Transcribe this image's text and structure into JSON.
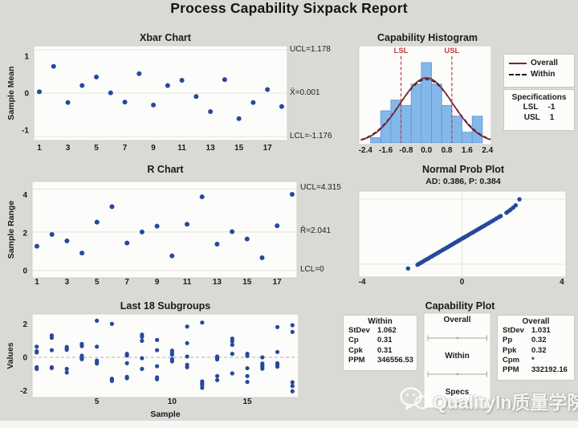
{
  "report": {
    "title": "Process Capability Sixpack Report"
  },
  "panels": {
    "xbar": {
      "title": "Xbar Chart",
      "ylabel": "Sample Mean",
      "ucl_label": "UCL=1.178",
      "center_label": "X̄=0.001",
      "lcl_label": "LCL=-1.176"
    },
    "hist": {
      "title": "Capability Histogram",
      "lsl_label": "LSL",
      "usl_label": "USL",
      "legend": {
        "overall": "Overall",
        "within": "Within"
      },
      "specs": {
        "header": "Specifications",
        "lsl_name": "LSL",
        "lsl_value": "-1",
        "usl_name": "USL",
        "usl_value": "1"
      }
    },
    "rchart": {
      "title": "R Chart",
      "ylabel": "Sample Range",
      "ucl_label": "UCL=4.315",
      "center_label": "R̄=2.041",
      "lcl_label": "LCL=0"
    },
    "nprob": {
      "title": "Normal Prob Plot",
      "subtitle": "AD: 0.386, P: 0.384"
    },
    "subgroups": {
      "title": "Last 18 Subgroups",
      "ylabel": "Values",
      "xlabel": "Sample"
    },
    "capplot": {
      "title": "Capability Plot",
      "within_box": {
        "header": "Within",
        "rows": [
          [
            "StDev",
            "1.062"
          ],
          [
            "Cp",
            "0.31"
          ],
          [
            "Cpk",
            "0.31"
          ],
          [
            "PPM",
            "346556.53"
          ]
        ]
      },
      "overall_box": {
        "header": "Overall",
        "rows": [
          [
            "StDev",
            "1.031"
          ],
          [
            "Pp",
            "0.32"
          ],
          [
            "Ppk",
            "0.32"
          ],
          [
            "Cpm",
            "*"
          ],
          [
            "PPM",
            "332192.16"
          ]
        ]
      },
      "interval_labels": [
        "Overall",
        "Within",
        "Specs"
      ]
    }
  },
  "watermark": {
    "text": "QualityIn质量学院",
    "icon": "wechat-icon"
  },
  "colors": {
    "page_bg": "#d9d9d6",
    "panel_bg": "#fcfcfa",
    "panel_border": "#d2d0cc",
    "point": "#27499d",
    "bar_fill": "#85b8ea",
    "bar_edge": "#5b97d6",
    "overall_curve": "#7a2433",
    "within_curve": "#1a1a1a",
    "spec": "#c03d45",
    "limit_line": "#e8e6e2",
    "grid": "#e5e3df",
    "interval_line": "#a6a6a2",
    "text": "#1b1b1b",
    "dash_center": "#b0b0ac",
    "bottom_strip": "#f6f6f4"
  },
  "chart_data": [
    {
      "id": "xbar",
      "type": "scatter",
      "title": "Xbar Chart",
      "ylabel": "Sample Mean",
      "ucl": 1.178,
      "center": 0.001,
      "lcl": -1.176,
      "yticks": [
        1,
        0,
        -1
      ],
      "xticks": [
        1,
        3,
        5,
        7,
        9,
        11,
        13,
        15,
        17
      ],
      "x": [
        1,
        2,
        3,
        4,
        5,
        6,
        7,
        8,
        9,
        10,
        11,
        12,
        13,
        14,
        15,
        16,
        17,
        18
      ],
      "values": [
        0.04,
        0.73,
        -0.25,
        0.21,
        0.44,
        0.01,
        -0.24,
        0.53,
        -0.32,
        0.21,
        0.35,
        -0.09,
        -0.5,
        0.37,
        -0.69,
        -0.25,
        0.1,
        -0.36
      ]
    },
    {
      "id": "hist",
      "type": "bar",
      "title": "Capability Histogram",
      "bin_width": 0.4,
      "bin_centers": [
        -2.0,
        -1.6,
        -1.2,
        -0.8,
        -0.4,
        0.0,
        0.4,
        0.8,
        1.2,
        1.6,
        2.0
      ],
      "counts": [
        1,
        6,
        8,
        7,
        11,
        15,
        11,
        7,
        5,
        2,
        5
      ],
      "xticks": [
        "-2.4",
        "-1.6",
        "-0.8",
        "0.0",
        "0.8",
        "1.6",
        "2.4"
      ],
      "xtick_values": [
        -2.4,
        -1.6,
        -0.8,
        0.0,
        0.8,
        1.6,
        2.4
      ],
      "lsl": -1,
      "usl": 1,
      "curve_overall": {
        "mean": 0.001,
        "sd": 1.031
      },
      "curve_within": {
        "mean": 0.001,
        "sd": 1.062
      }
    },
    {
      "id": "rchart",
      "type": "scatter",
      "title": "R Chart",
      "ylabel": "Sample Range",
      "ucl": 4.315,
      "center": 2.041,
      "lcl": 0,
      "yticks": [
        4,
        2,
        0
      ],
      "xticks": [
        1,
        3,
        5,
        7,
        9,
        11,
        13,
        15,
        17
      ],
      "x": [
        1,
        2,
        3,
        4,
        5,
        6,
        7,
        8,
        9,
        10,
        11,
        12,
        13,
        14,
        15,
        16,
        17,
        18
      ],
      "values": [
        1.29,
        1.91,
        1.57,
        0.93,
        2.56,
        3.38,
        1.46,
        2.04,
        2.35,
        0.78,
        2.45,
        3.9,
        1.4,
        2.06,
        1.67,
        0.68,
        2.37,
        4.03
      ]
    },
    {
      "id": "nprob",
      "type": "scatter",
      "title": "Normal Prob Plot",
      "subtitle": "AD: 0.386, P: 0.384",
      "xticks": [
        -4,
        0,
        4
      ],
      "xlim": [
        -4.15,
        4.15
      ],
      "points": [
        [
          -2.16,
          0.1
        ],
        [
          -1.78,
          0.143
        ],
        [
          -1.72,
          0.154
        ],
        [
          -1.66,
          0.164
        ],
        [
          -1.6,
          0.174
        ],
        [
          -1.52,
          0.188
        ],
        [
          -1.45,
          0.2
        ],
        [
          -1.38,
          0.211
        ],
        [
          -1.3,
          0.225
        ],
        [
          -1.22,
          0.239
        ],
        [
          -1.15,
          0.251
        ],
        [
          -1.08,
          0.262
        ],
        [
          -1.0,
          0.276
        ],
        [
          -0.93,
          0.288
        ],
        [
          -0.86,
          0.3
        ],
        [
          -0.78,
          0.313
        ],
        [
          -0.71,
          0.325
        ],
        [
          -0.64,
          0.337
        ],
        [
          -0.57,
          0.349
        ],
        [
          -0.5,
          0.361
        ],
        [
          -0.44,
          0.371
        ],
        [
          -0.38,
          0.381
        ],
        [
          -0.32,
          0.392
        ],
        [
          -0.26,
          0.402
        ],
        [
          -0.2,
          0.412
        ],
        [
          -0.15,
          0.421
        ],
        [
          -0.1,
          0.429
        ],
        [
          -0.05,
          0.438
        ],
        [
          0.0,
          0.446
        ],
        [
          0.05,
          0.455
        ],
        [
          0.1,
          0.463
        ],
        [
          0.16,
          0.473
        ],
        [
          0.22,
          0.483
        ],
        [
          0.28,
          0.494
        ],
        [
          0.35,
          0.506
        ],
        [
          0.42,
          0.517
        ],
        [
          0.49,
          0.529
        ],
        [
          0.56,
          0.541
        ],
        [
          0.63,
          0.553
        ],
        [
          0.7,
          0.565
        ],
        [
          0.78,
          0.579
        ],
        [
          0.86,
          0.592
        ],
        [
          0.94,
          0.606
        ],
        [
          1.02,
          0.619
        ],
        [
          1.1,
          0.633
        ],
        [
          1.19,
          0.648
        ],
        [
          1.28,
          0.664
        ],
        [
          1.38,
          0.681
        ],
        [
          1.48,
          0.698
        ],
        [
          1.55,
          0.71
        ],
        [
          1.78,
          0.748
        ],
        [
          1.86,
          0.765
        ],
        [
          1.95,
          0.785
        ],
        [
          2.05,
          0.808
        ],
        [
          2.15,
          0.835
        ],
        [
          2.3,
          0.905
        ]
      ]
    },
    {
      "id": "subgroups",
      "type": "scatter",
      "title": "Last 18 Subgroups",
      "ylabel": "Values",
      "xlabel": "Sample",
      "yticks": [
        2,
        0,
        -2
      ],
      "xticks": [
        5,
        10,
        15
      ],
      "centerline": 0,
      "groups": [
        [
          0.64,
          0.37,
          0.29,
          -0.59,
          -0.69
        ],
        [
          1.31,
          1.17,
          0.43,
          -0.59,
          -0.64
        ],
        [
          0.62,
          0.51,
          0.45,
          -0.69,
          -0.91
        ],
        [
          0.8,
          0.67,
          0.1,
          -0.02,
          -0.11
        ],
        [
          2.19,
          0.64,
          -0.19,
          -0.29,
          -0.37
        ],
        [
          2.0,
          -1.28,
          -1.31,
          -1.38,
          -1.41
        ],
        [
          0.21,
          0.11,
          -0.35,
          -1.17,
          -1.25
        ],
        [
          1.36,
          1.23,
          0.99,
          -0.05,
          -0.69
        ],
        [
          1.04,
          0.43,
          -0.53,
          -1.2,
          -1.31
        ],
        [
          0.4,
          0.27,
          0.16,
          -0.11,
          -0.24
        ],
        [
          1.84,
          0.85,
          0.05,
          -0.45,
          -0.59
        ],
        [
          2.08,
          -1.44,
          -1.55,
          -1.65,
          -1.82
        ],
        [
          0.05,
          -0.05,
          -0.13,
          -1.12,
          -1.36
        ],
        [
          1.12,
          0.96,
          0.75,
          0.21,
          -0.96
        ],
        [
          0.21,
          0.08,
          -0.65,
          -1.12,
          -1.47
        ],
        [
          0.0,
          -0.37,
          -0.48,
          -0.59,
          -0.68
        ],
        [
          1.81,
          0.32,
          -0.35,
          -0.45,
          -0.56
        ],
        [
          1.92,
          1.52,
          -1.49,
          -1.71,
          -2.03
        ]
      ],
      "spec_intervals": {
        "overall": [
          -3.1,
          3.1
        ],
        "within": [
          -3.18,
          3.18
        ],
        "specs": [
          -1,
          1
        ]
      }
    }
  ]
}
